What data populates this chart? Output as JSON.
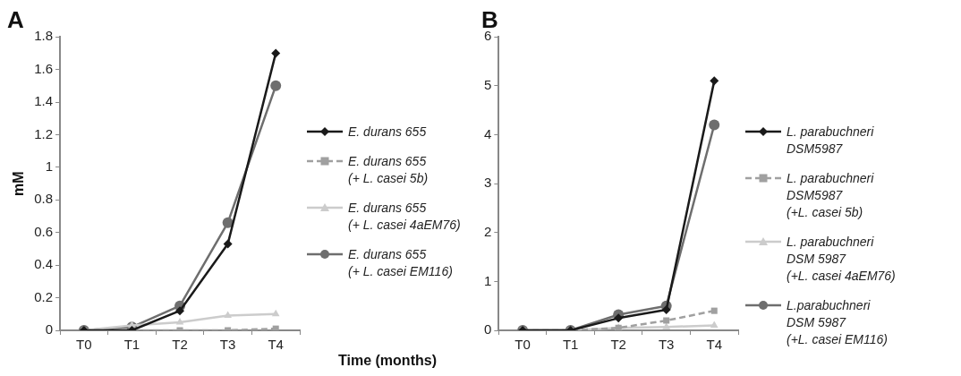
{
  "chart_data": [
    {
      "type": "line",
      "title": "A",
      "ylabel": "mM",
      "xlabel": "Time (months)",
      "categories": [
        "T0",
        "T1",
        "T2",
        "T3",
        "T4"
      ],
      "ylim": [
        0,
        1.8
      ],
      "yticks": [
        0,
        0.2,
        0.4,
        0.6,
        0.8,
        1,
        1.2,
        1.4,
        1.6,
        1.8
      ],
      "grid": false,
      "legend": "right",
      "series": [
        {
          "name": "E. durans 655",
          "color": "#1a1a1a",
          "marker": "diamond",
          "line_style": "solid",
          "values": [
            0,
            0,
            0.12,
            0.53,
            1.7
          ]
        },
        {
          "name": "E. durans 655\n(+ L. casei 5b)",
          "color": "#a0a0a0",
          "marker": "square",
          "line_style": "dashed",
          "values": [
            0,
            0,
            0,
            0,
            0.01
          ]
        },
        {
          "name": "E. durans 655\n(+ L. casei 4aEM76)",
          "color": "#cccccc",
          "marker": "triangle",
          "line_style": "solid",
          "values": [
            0,
            0.03,
            0.05,
            0.09,
            0.1
          ]
        },
        {
          "name": "E. durans 655\n(+ L. casei EM116)",
          "color": "#6e6e6e",
          "marker": "circle",
          "line_style": "solid",
          "values": [
            0,
            0.02,
            0.15,
            0.66,
            1.5
          ]
        }
      ]
    },
    {
      "type": "line",
      "title": "B",
      "categories": [
        "T0",
        "T1",
        "T2",
        "T3",
        "T4"
      ],
      "ylim": [
        0,
        6
      ],
      "yticks": [
        0,
        1,
        2,
        3,
        4,
        5,
        6
      ],
      "grid": false,
      "legend": "right",
      "series": [
        {
          "name": "L. parabuchneri\nDSM5987",
          "color": "#1a1a1a",
          "marker": "diamond",
          "line_style": "solid",
          "values": [
            0,
            0,
            0.25,
            0.42,
            5.1
          ]
        },
        {
          "name": "L. parabuchneri\nDSM5987\n(+L. casei 5b)",
          "color": "#a0a0a0",
          "marker": "square",
          "line_style": "dashed",
          "values": [
            0,
            0,
            0.05,
            0.2,
            0.4
          ]
        },
        {
          "name": "L. parabuchneri\nDSM 5987\n(+L. casei 4aEM76)",
          "color": "#cccccc",
          "marker": "triangle",
          "line_style": "solid",
          "values": [
            0,
            0,
            0.05,
            0.07,
            0.1
          ]
        },
        {
          "name": "L.parabuchneri\nDSM 5987\n(+L. casei EM116)",
          "color": "#6e6e6e",
          "marker": "circle",
          "line_style": "solid",
          "values": [
            0,
            0,
            0.32,
            0.5,
            4.2
          ]
        }
      ]
    }
  ]
}
